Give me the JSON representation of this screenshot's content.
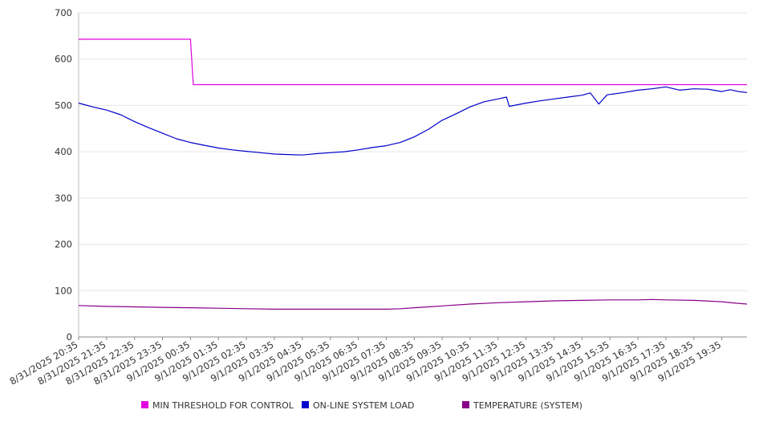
{
  "chart_data": {
    "type": "line",
    "title": "",
    "xlabel": "",
    "ylabel": "",
    "ylim": [
      0,
      700
    ],
    "yticks": [
      0,
      100,
      200,
      300,
      400,
      500,
      600,
      700
    ],
    "grid": "horizontal",
    "legend_position": "bottom",
    "x_tick_labels": [
      "8/31/2025 20:35",
      "8/31/2025 21:35",
      "8/31/2025 22:35",
      "8/31/2025 23:35",
      "9/1/2025 00:35",
      "9/1/2025 01:35",
      "9/1/2025 02:35",
      "9/1/2025 03:35",
      "9/1/2025 04:35",
      "9/1/2025 05:35",
      "9/1/2025 06:35",
      "9/1/2025 07:35",
      "9/1/2025 08:35",
      "9/1/2025 09:35",
      "9/1/2025 10:35",
      "9/1/2025 11:35",
      "9/1/2025 12:35",
      "9/1/2025 13:35",
      "9/1/2025 14:35",
      "9/1/2025 15:35",
      "9/1/2025 16:35",
      "9/1/2025 17:35",
      "9/1/2025 18:35",
      "9/1/2025 19:35"
    ],
    "x_hours_range": [
      0,
      23.9
    ],
    "series": [
      {
        "name": "MIN THRESHOLD FOR CONTROL",
        "color": "#e000e0",
        "points": [
          [
            0,
            643
          ],
          [
            4,
            643
          ],
          [
            4.1,
            545
          ],
          [
            23.9,
            545
          ]
        ]
      },
      {
        "name": "ON-LINE SYSTEM LOAD",
        "color": "#0000cc",
        "points": [
          [
            0,
            505
          ],
          [
            0.5,
            497
          ],
          [
            1,
            490
          ],
          [
            1.5,
            480
          ],
          [
            2,
            465
          ],
          [
            2.5,
            452
          ],
          [
            3,
            440
          ],
          [
            3.5,
            428
          ],
          [
            4,
            420
          ],
          [
            4.5,
            414
          ],
          [
            5,
            408
          ],
          [
            5.5,
            404
          ],
          [
            6,
            401
          ],
          [
            6.5,
            398
          ],
          [
            7,
            395
          ],
          [
            7.5,
            394
          ],
          [
            8,
            393
          ],
          [
            8.5,
            396
          ],
          [
            9,
            398
          ],
          [
            9.5,
            400
          ],
          [
            10,
            404
          ],
          [
            10.5,
            409
          ],
          [
            11,
            413
          ],
          [
            11.5,
            420
          ],
          [
            12,
            432
          ],
          [
            12.5,
            448
          ],
          [
            13,
            468
          ],
          [
            13.5,
            482
          ],
          [
            14,
            497
          ],
          [
            14.5,
            508
          ],
          [
            15,
            514
          ],
          [
            15.3,
            518
          ],
          [
            15.4,
            498
          ],
          [
            16,
            505
          ],
          [
            16.5,
            510
          ],
          [
            17,
            514
          ],
          [
            17.5,
            518
          ],
          [
            18,
            522
          ],
          [
            18.3,
            527
          ],
          [
            18.6,
            503
          ],
          [
            18.9,
            523
          ],
          [
            19.5,
            528
          ],
          [
            20,
            533
          ],
          [
            20.5,
            536
          ],
          [
            21,
            540
          ],
          [
            21.5,
            533
          ],
          [
            22,
            536
          ],
          [
            22.5,
            535
          ],
          [
            23,
            530
          ],
          [
            23.3,
            534
          ],
          [
            23.6,
            530
          ],
          [
            23.9,
            528
          ]
        ]
      },
      {
        "name": "TEMPERATURE (SYSTEM)",
        "color": "#880088",
        "points": [
          [
            0,
            68
          ],
          [
            1,
            66
          ],
          [
            2,
            65
          ],
          [
            3,
            64
          ],
          [
            4,
            63
          ],
          [
            5,
            62
          ],
          [
            6,
            61
          ],
          [
            7,
            60
          ],
          [
            8,
            60
          ],
          [
            9,
            60
          ],
          [
            10,
            60
          ],
          [
            11,
            60
          ],
          [
            11.5,
            61
          ],
          [
            12,
            63
          ],
          [
            12.5,
            65
          ],
          [
            13,
            67
          ],
          [
            14,
            71
          ],
          [
            15,
            74
          ],
          [
            16,
            76
          ],
          [
            17,
            78
          ],
          [
            18,
            79
          ],
          [
            19,
            80
          ],
          [
            20,
            80
          ],
          [
            20.5,
            81
          ],
          [
            21,
            80
          ],
          [
            22,
            79
          ],
          [
            23,
            76
          ],
          [
            23.5,
            73
          ],
          [
            23.9,
            71
          ]
        ]
      }
    ]
  }
}
